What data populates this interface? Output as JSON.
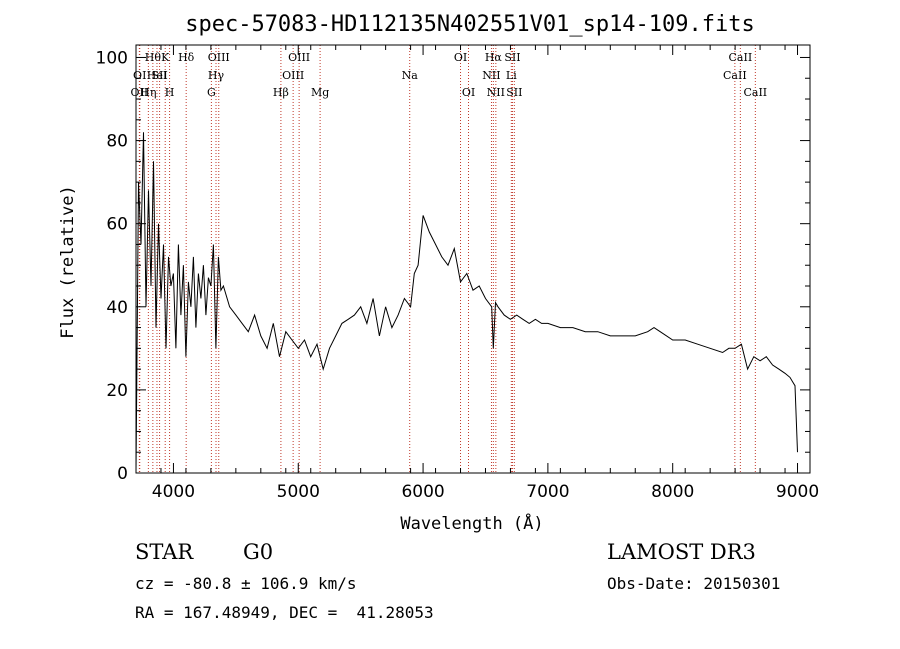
{
  "chart_data": {
    "type": "line",
    "title": "spec-57083-HD112135N402551V01_sp14-109.fits",
    "xlabel": "Wavelength (Å)",
    "ylabel": "Flux (relative)",
    "xlim": [
      3700,
      9100
    ],
    "ylim": [
      0,
      103
    ],
    "xticks": [
      4000,
      5000,
      6000,
      7000,
      8000,
      9000
    ],
    "yticks": [
      0,
      20,
      40,
      60,
      80,
      100
    ],
    "grid": false,
    "series": [
      {
        "x": [
          3700,
          3720,
          3740,
          3760,
          3780,
          3800,
          3820,
          3840,
          3860,
          3880,
          3900,
          3920,
          3940,
          3960,
          3980,
          4000,
          4020,
          4040,
          4060,
          4080,
          4100,
          4120,
          4140,
          4160,
          4180,
          4200,
          4220,
          4240,
          4260,
          4280,
          4300,
          4320,
          4340,
          4360,
          4380,
          4400,
          4450,
          4500,
          4550,
          4600,
          4650,
          4700,
          4750,
          4800,
          4850,
          4900,
          4950,
          5000,
          5050,
          5100,
          5150,
          5200,
          5250,
          5300,
          5350,
          5400,
          5450,
          5500,
          5550,
          5600,
          5650,
          5700,
          5750,
          5800,
          5850,
          5900,
          5930,
          5960,
          6000,
          6050,
          6100,
          6150,
          6200,
          6250,
          6300,
          6350,
          6400,
          6450,
          6500,
          6550,
          6563,
          6580,
          6600,
          6650,
          6700,
          6750,
          6800,
          6850,
          6900,
          6950,
          7000,
          7100,
          7200,
          7300,
          7400,
          7500,
          7600,
          7700,
          7800,
          7850,
          7900,
          8000,
          8100,
          8200,
          8300,
          8400,
          8450,
          8500,
          8550,
          8600,
          8650,
          8700,
          8750,
          8800,
          8850,
          8900,
          8940,
          8960,
          8980,
          9000
        ],
        "y": [
          0,
          70,
          55,
          82,
          40,
          68,
          45,
          75,
          35,
          60,
          42,
          55,
          30,
          52,
          45,
          48,
          30,
          55,
          38,
          50,
          28,
          46,
          40,
          52,
          35,
          48,
          42,
          50,
          38,
          47,
          45,
          55,
          30,
          52,
          44,
          45,
          40,
          38,
          36,
          34,
          38,
          33,
          30,
          36,
          28,
          34,
          32,
          30,
          32,
          28,
          31,
          25,
          30,
          33,
          36,
          37,
          38,
          40,
          36,
          42,
          33,
          40,
          35,
          38,
          42,
          40,
          48,
          50,
          62,
          58,
          55,
          52,
          50,
          54,
          46,
          48,
          44,
          45,
          42,
          40,
          30,
          41,
          40,
          38,
          37,
          38,
          37,
          36,
          37,
          36,
          36,
          35,
          35,
          34,
          34,
          33,
          33,
          33,
          34,
          35,
          34,
          32,
          32,
          31,
          30,
          29,
          30,
          30,
          31,
          25,
          28,
          27,
          28,
          26,
          25,
          24,
          23,
          22,
          21,
          5
        ]
      }
    ],
    "line_markers": [
      {
        "wl": 3727,
        "label": "OII",
        "row": 3
      },
      {
        "wl": 3730,
        "label": "OI",
        "row": 2
      },
      {
        "wl": 3799,
        "label": "Hη",
        "row": 3
      },
      {
        "wl": 3835,
        "label": "Hθ",
        "row": 1
      },
      {
        "wl": 3868,
        "label": "HeI",
        "row": 2
      },
      {
        "wl": 3889,
        "label": "SII",
        "row": 2
      },
      {
        "wl": 3934,
        "label": "K",
        "row": 1
      },
      {
        "wl": 3969,
        "label": "H",
        "row": 3
      },
      {
        "wl": 4102,
        "label": "Hδ",
        "row": 1
      },
      {
        "wl": 4304,
        "label": "G",
        "row": 3
      },
      {
        "wl": 4341,
        "label": "Hγ",
        "row": 2
      },
      {
        "wl": 4363,
        "label": "OIII",
        "row": 1
      },
      {
        "wl": 4861,
        "label": "Hβ",
        "row": 3
      },
      {
        "wl": 4959,
        "label": "OIII",
        "row": 2
      },
      {
        "wl": 5007,
        "label": "OIII",
        "row": 1
      },
      {
        "wl": 5175,
        "label": "Mg",
        "row": 3
      },
      {
        "wl": 5893,
        "label": "Na",
        "row": 2
      },
      {
        "wl": 6300,
        "label": "OI",
        "row": 1
      },
      {
        "wl": 6364,
        "label": "OI",
        "row": 3
      },
      {
        "wl": 6548,
        "label": "NII",
        "row": 2
      },
      {
        "wl": 6563,
        "label": "Hα",
        "row": 1
      },
      {
        "wl": 6583,
        "label": "NII",
        "row": 3
      },
      {
        "wl": 6707,
        "label": "Li",
        "row": 2
      },
      {
        "wl": 6716,
        "label": "SII",
        "row": 1
      },
      {
        "wl": 6731,
        "label": "SII",
        "row": 3
      },
      {
        "wl": 8498,
        "label": "CaII",
        "row": 2
      },
      {
        "wl": 8542,
        "label": "CaII",
        "row": 1
      },
      {
        "wl": 8662,
        "label": "CaII",
        "row": 3
      }
    ]
  },
  "info": {
    "object_class": "STAR",
    "subclass": "G0",
    "survey": "LAMOST DR3",
    "cz": "cz = -80.8 ± 106.9 km/s",
    "obs_date": "Obs-Date: 20150301",
    "coords": "RA = 167.48949, DEC =  41.28053"
  },
  "colors": {
    "line": "#000000",
    "marker": "#c0392b"
  }
}
